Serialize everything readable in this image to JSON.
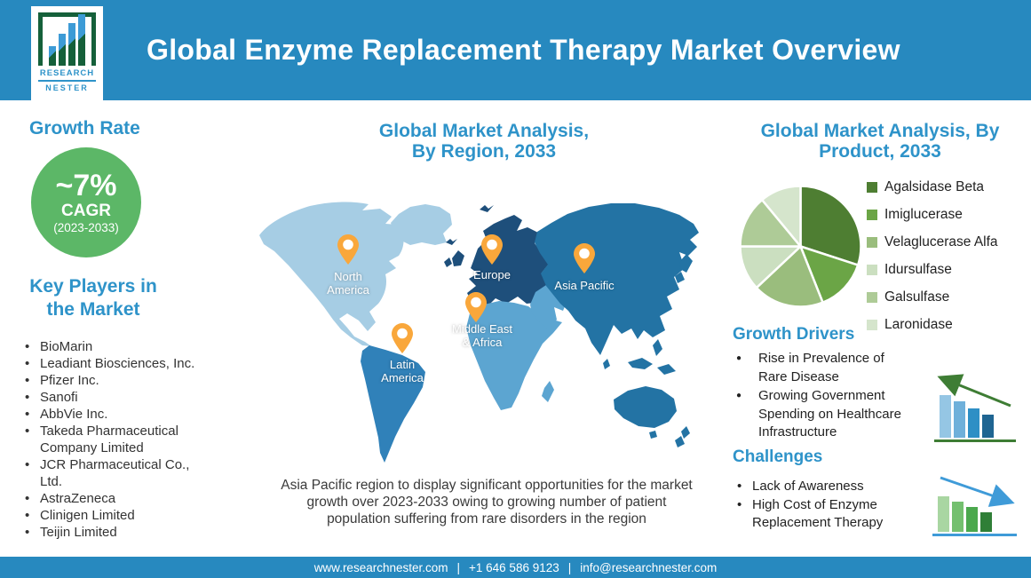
{
  "header": {
    "title": "Global Enzyme Replacement Therapy Market Overview",
    "logo": {
      "line1": "RESEARCH",
      "line2": "NESTER"
    }
  },
  "colors": {
    "accent_blue": "#2789BF",
    "heading_blue": "#2E93C9",
    "growth_circle_green": "#5CB767"
  },
  "growth_rate": {
    "heading": "Growth Rate",
    "value": "~7%",
    "label": "CAGR",
    "period": "(2023-2033)"
  },
  "key_players": {
    "heading": "Key Players in\nthe Market",
    "items": [
      "BioMarin",
      "Leadiant Biosciences, Inc.",
      "Pfizer Inc.",
      "Sanofi",
      "AbbVie Inc.",
      "Takeda Pharmaceutical Company Limited",
      "JCR Pharmaceutical Co., Ltd.",
      "AstraZeneca",
      "Clinigen Limited",
      "Teijin Limited"
    ]
  },
  "region_section": {
    "heading": "Global Market Analysis,\nBy Region, 2033",
    "regions": {
      "north_america": "North\nAmerica",
      "latin_america": "Latin\nAmerica",
      "europe": "Europe",
      "middle_east_africa": "Middle East\n& Africa",
      "asia_pacific": "Asia Pacific"
    },
    "map_colors": {
      "north_america": "#A6CDE4",
      "latin_america": "#3081B9",
      "europe": "#1E4F7B",
      "middle_east_africa": "#5CA5D1",
      "asia_pacific": "#2373A4"
    },
    "pin_color": "#F9A73B",
    "note": "Asia Pacific region to display significant opportunities for the market growth over 2023-2033 owing to growing number of patient population suffering from rare disorders in the region"
  },
  "product_section": {
    "heading": "Global Market Analysis, By\nProduct, 2033"
  },
  "chart_data": {
    "type": "pie",
    "title": "Global Market Analysis, By Product, 2033",
    "legend_position": "right",
    "start_angle_deg": 0,
    "direction": "clockwise",
    "slices": [
      {
        "label": "Agalsidase Beta",
        "value": 30,
        "color": "#4E7E32"
      },
      {
        "label": "Imiglucerase",
        "value": 14,
        "color": "#6BA546"
      },
      {
        "label": "Velaglucerase Alfa",
        "value": 19,
        "color": "#9ABD7D"
      },
      {
        "label": "Idursulfase",
        "value": 12,
        "color": "#CBDFC0"
      },
      {
        "label": "Galsulfase",
        "value": 14,
        "color": "#AECB97"
      },
      {
        "label": "Laronidase",
        "value": 11,
        "color": "#D5E5CC"
      }
    ]
  },
  "growth_drivers": {
    "heading": "Growth Drivers",
    "items": [
      "Rise in Prevalence of Rare Disease",
      "Growing Government Spending on Healthcare Infrastructure"
    ],
    "icon": {
      "name": "declining-bar-trend-icon",
      "bar_colors": [
        "#95C6E4",
        "#6FB0DA",
        "#2E8FC5",
        "#1F6592",
        "#173F5E"
      ],
      "arrow_color": "#3E7D34",
      "baseline_color": "#3E7D34"
    }
  },
  "challenges": {
    "heading": "Challenges",
    "items": [
      "Lack of Awareness",
      "High Cost of Enzyme Replacement Therapy"
    ],
    "icon": {
      "name": "declining-bar-trend-icon",
      "bar_colors": [
        "#A9D6A2",
        "#74C06F",
        "#4BA84D",
        "#2F7F37",
        "#1A5A23"
      ],
      "arrow_color": "#3F9BD8",
      "baseline_color": "#3F9BD8"
    }
  },
  "footer": {
    "website": "www.researchnester.com",
    "phone": "+1 646 586 9123",
    "email": "info@researchnester.com",
    "separator": "|"
  }
}
